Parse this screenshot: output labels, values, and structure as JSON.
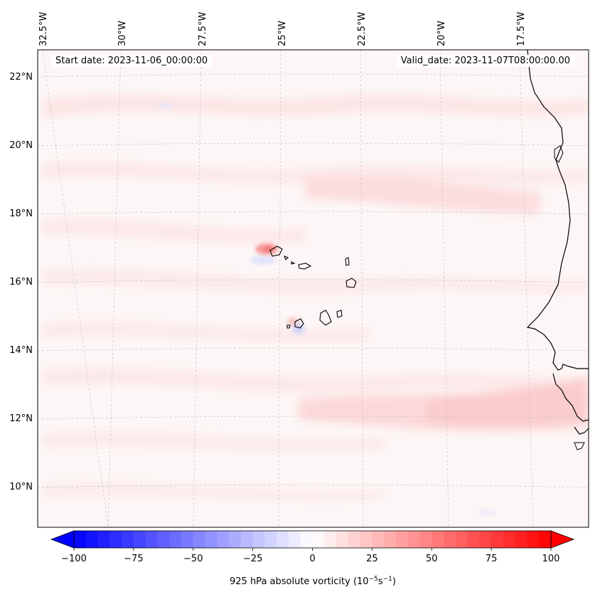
{
  "map": {
    "start_date": "Start date: 2023-11-06_00:00:00",
    "valid_date": "Valid_date: 2023-11-07T08:00:00.00",
    "lon_labels": [
      "32.5°W",
      "30°W",
      "27.5°W",
      "25°W",
      "22.5°W",
      "20°W",
      "17.5°W"
    ],
    "lat_labels": [
      "22°N",
      "20°N",
      "18°N",
      "16°N",
      "14°N",
      "12°N",
      "10°N"
    ],
    "features": [
      "Cape Verde islands",
      "West African coastline"
    ]
  },
  "colorbar": {
    "ticks": [
      "−100",
      "−75",
      "−50",
      "−25",
      "0",
      "25",
      "50",
      "75",
      "100"
    ],
    "range": [
      -100,
      100
    ],
    "label_main": "925 hPa absolute vorticity (10",
    "label_exp1": "−5",
    "label_mid": "s",
    "label_exp2": "−1",
    "label_end": ")",
    "colors": {
      "low": "#0000ff",
      "mid": "#ffffff",
      "high": "#ff0000"
    }
  }
}
